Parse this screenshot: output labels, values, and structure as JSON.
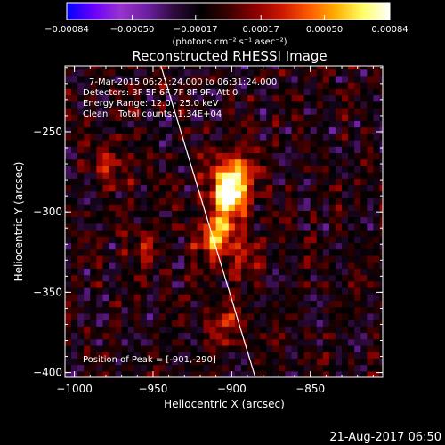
{
  "chart_data": {
    "type": "heatmap",
    "title": "Reconstructed RHESSI Image",
    "xlabel": "Heliocentric X (arcsec)",
    "ylabel": "Heliocentric Y (arcsec)",
    "xlim": [
      -1006,
      -804
    ],
    "ylim": [
      -403,
      -209
    ],
    "x_ticks": [
      {
        "value": -1000,
        "label": "−1000"
      },
      {
        "value": -950,
        "label": "−950"
      },
      {
        "value": -900,
        "label": "−900"
      },
      {
        "value": -850,
        "label": "−850"
      }
    ],
    "y_ticks": [
      {
        "value": -250,
        "label": "−250"
      },
      {
        "value": -300,
        "label": "−300"
      },
      {
        "value": -350,
        "label": "−350"
      },
      {
        "value": -400,
        "label": "−400"
      }
    ],
    "colorbar": {
      "min": -0.00084,
      "max": 0.00084,
      "ticks": [
        {
          "value": -0.00084,
          "label": "−0.00084"
        },
        {
          "value": -0.0005,
          "label": "−0.00050"
        },
        {
          "value": -0.00017,
          "label": "−0.00017"
        },
        {
          "value": 0.00017,
          "label": "0.00017"
        },
        {
          "value": 0.0005,
          "label": "0.00050"
        },
        {
          "value": 0.00084,
          "label": "0.00084"
        }
      ],
      "unit_label": "(photons cm⁻² s⁻¹ asec⁻²)",
      "colors": [
        "#0000ff",
        "#6a00ff",
        "#9933cc",
        "#6b1fa0",
        "#2d0a3a",
        "#000000",
        "#3a0000",
        "#8a0000",
        "#cc1800",
        "#ff5a00",
        "#ffb000",
        "#ffff66",
        "#ffffff"
      ]
    },
    "annotations": {
      "time_range": "7-Mar-2015 06:21:24.000 to 06:31:24.000",
      "detectors": "Detectors: 3F 5F 6F 7F 8F 9F, Att 0",
      "energy_range": "Energy Range: 12.0 - 25.0 keV",
      "clean_label": "Clean",
      "total_counts": "Total counts: 1.34E+04",
      "peak_position": "Position of Peak = [-901,-290]"
    },
    "peak": {
      "x": -901,
      "y": -290
    },
    "sources": [
      {
        "x": -901,
        "y": -290,
        "intensity": 0.00084
      },
      {
        "x": -910,
        "y": -314,
        "intensity": 0.0007
      },
      {
        "x": -898,
        "y": -275,
        "intensity": 0.00065
      },
      {
        "x": -895,
        "y": -330,
        "intensity": 0.0003
      },
      {
        "x": -975,
        "y": -270,
        "intensity": 0.00035
      },
      {
        "x": -955,
        "y": -320,
        "intensity": 0.00025
      },
      {
        "x": -905,
        "y": -370,
        "intensity": 0.0003
      }
    ],
    "limb_line": {
      "x1": -945,
      "y1": -209,
      "x2": -885,
      "y2": -403,
      "color": "#ffffff"
    }
  },
  "footer": {
    "timestamp": "21-Aug-2017 06:50"
  }
}
